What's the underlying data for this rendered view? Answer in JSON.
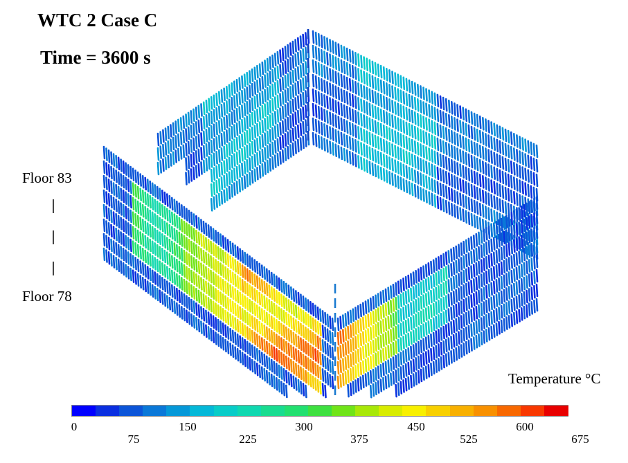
{
  "title": "WTC 2 Case C",
  "time_label": "Time = 3600 s",
  "floor_top": "Floor 83",
  "floor_bottom": "Floor 78",
  "legend": {
    "title": "Temperature  °C",
    "min": 0,
    "max": 675,
    "ticks_upper": [
      "0",
      "150",
      "300",
      "450",
      "600"
    ],
    "ticks_lower": [
      "75",
      "225",
      "375",
      "525",
      "675"
    ],
    "colors": [
      "#0000ff",
      "#0a2fe0",
      "#0c55d8",
      "#0a78d8",
      "#0598d8",
      "#04b8d8",
      "#08ccc8",
      "#10d8b0",
      "#18dc90",
      "#22e070",
      "#3ee040",
      "#70e418",
      "#a8e808",
      "#d8ec00",
      "#f8f000",
      "#f8d000",
      "#f8b000",
      "#f89000",
      "#f86800",
      "#f83800",
      "#e80000"
    ]
  }
}
